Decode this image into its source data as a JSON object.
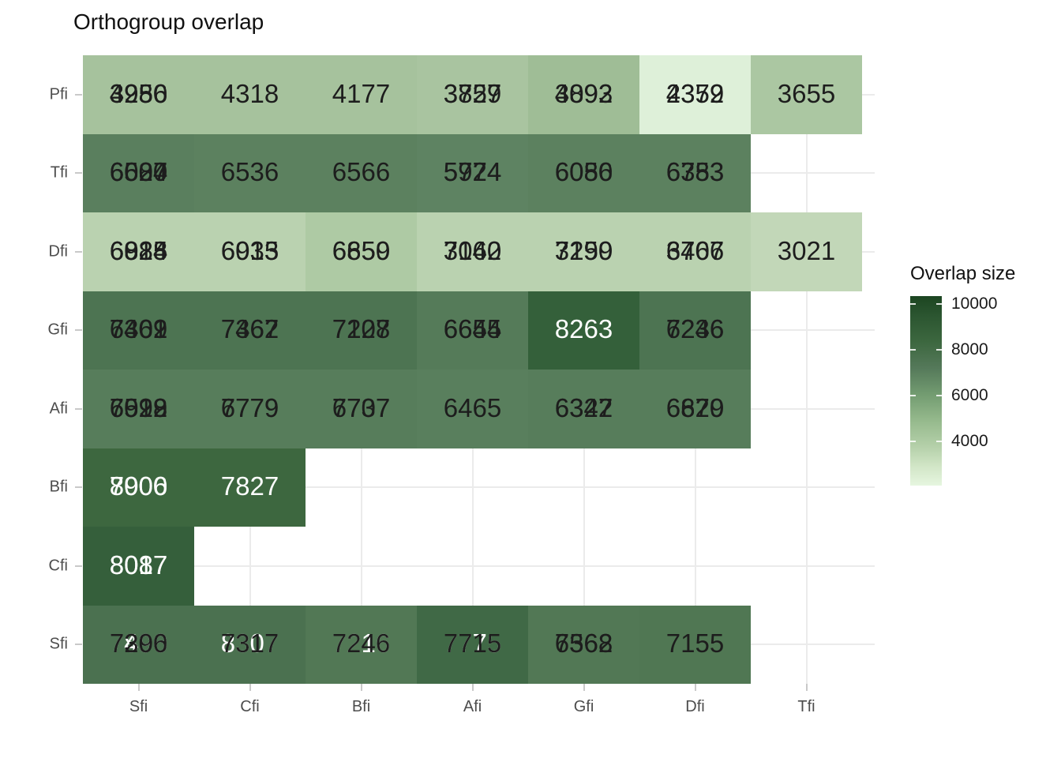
{
  "title": "Orthogroup overlap",
  "palette": {
    "label_dark": "#1d1d1d",
    "label_light": "#ffffff",
    "axis_text": "#4d4d4d",
    "gridline": "#ebebeb",
    "legend_dark_end": "#1c4521",
    "legend_light_end": "#e6f6df"
  },
  "chart_data": {
    "type": "heatmap",
    "title": "Orthogroup overlap",
    "x_categories": [
      "Sfi",
      "Cfi",
      "Bfi",
      "Afi",
      "Gfi",
      "Dfi",
      "Tfi"
    ],
    "y_categories": [
      "Pfi",
      "Tfi",
      "Dfi",
      "Gfi",
      "Afi",
      "Bfi",
      "Cfi",
      "Sfi"
    ],
    "legend": {
      "title": "Overlap size",
      "tick_values": [
        "10000",
        "8000",
        "6000",
        "4000"
      ],
      "domain": [
        2100,
        10350
      ]
    },
    "cells": [
      {
        "row": "Pfi",
        "col": "Sfi",
        "bg": "#a6c29d",
        "labels": [
          {
            "text": "4256",
            "tone": "dark"
          },
          {
            "text": "3950",
            "tone": "dark"
          },
          {
            "text": "3986",
            "tone": "dark"
          }
        ]
      },
      {
        "row": "Pfi",
        "col": "Cfi",
        "bg": "#a6c29d",
        "labels": [
          {
            "text": "4318",
            "tone": "dark"
          }
        ]
      },
      {
        "row": "Pfi",
        "col": "Bfi",
        "bg": "#a6c29d",
        "labels": [
          {
            "text": "4177",
            "tone": "dark"
          }
        ]
      },
      {
        "row": "Pfi",
        "col": "Afi",
        "bg": "#a9c4a0",
        "labels": [
          {
            "text": "3829",
            "tone": "dark"
          },
          {
            "text": "3757",
            "tone": "dark"
          }
        ]
      },
      {
        "row": "Pfi",
        "col": "Gfi",
        "bg": "#9fbd96",
        "labels": [
          {
            "text": "4092",
            "tone": "dark"
          },
          {
            "text": "3893",
            "tone": "dark"
          }
        ]
      },
      {
        "row": "Pfi",
        "col": "Dfi",
        "bg": "#def0d9",
        "labels": [
          {
            "text": "4352",
            "tone": "dark"
          },
          {
            "text": "2379",
            "tone": "dark"
          }
        ]
      },
      {
        "row": "Pfi",
        "col": "Tfi",
        "bg": "#abc7a2",
        "labels": [
          {
            "text": "3655",
            "tone": "dark"
          }
        ]
      },
      {
        "row": "Tfi",
        "col": "Sfi",
        "bg": "#5a7f5e",
        "labels": [
          {
            "text": "6504",
            "tone": "dark"
          },
          {
            "text": "6680",
            "tone": "dark"
          },
          {
            "text": "6027",
            "tone": "dark"
          }
        ]
      },
      {
        "row": "Tfi",
        "col": "Cfi",
        "bg": "#5c815f",
        "labels": [
          {
            "text": "6536",
            "tone": "dark"
          }
        ]
      },
      {
        "row": "Tfi",
        "col": "Bfi",
        "bg": "#5c815f",
        "labels": [
          {
            "text": "6566",
            "tone": "dark"
          }
        ]
      },
      {
        "row": "Tfi",
        "col": "Afi",
        "bg": "#5e8362",
        "labels": [
          {
            "text": "5924",
            "tone": "dark"
          },
          {
            "text": "5774",
            "tone": "dark"
          }
        ]
      },
      {
        "row": "Tfi",
        "col": "Gfi",
        "bg": "#5c815f",
        "labels": [
          {
            "text": "6056",
            "tone": "dark"
          },
          {
            "text": "6080",
            "tone": "dark"
          }
        ]
      },
      {
        "row": "Tfi",
        "col": "Dfi",
        "bg": "#5c815f",
        "labels": [
          {
            "text": "6353",
            "tone": "dark"
          },
          {
            "text": "6783",
            "tone": "dark"
          }
        ]
      },
      {
        "row": "Dfi",
        "col": "Sfi",
        "bg": "#bad2b0",
        "labels": [
          {
            "text": "6928",
            "tone": "dark"
          },
          {
            "text": "6815",
            "tone": "dark"
          },
          {
            "text": "6084",
            "tone": "dark"
          }
        ]
      },
      {
        "row": "Dfi",
        "col": "Cfi",
        "bg": "#bad2b0",
        "labels": [
          {
            "text": "6935",
            "tone": "dark"
          },
          {
            "text": "6013",
            "tone": "dark"
          }
        ]
      },
      {
        "row": "Dfi",
        "col": "Bfi",
        "bg": "#aecaa4",
        "labels": [
          {
            "text": "6659",
            "tone": "dark"
          },
          {
            "text": "6850",
            "tone": "dark"
          }
        ]
      },
      {
        "row": "Dfi",
        "col": "Afi",
        "bg": "#bad2b0",
        "labels": [
          {
            "text": "7060",
            "tone": "dark"
          },
          {
            "text": "3142",
            "tone": "dark"
          }
        ]
      },
      {
        "row": "Dfi",
        "col": "Gfi",
        "bg": "#bad2b0",
        "labels": [
          {
            "text": "7299",
            "tone": "dark"
          },
          {
            "text": "3150",
            "tone": "dark"
          }
        ]
      },
      {
        "row": "Dfi",
        "col": "Dfi",
        "bg": "#bad2b0",
        "labels": [
          {
            "text": "6466",
            "tone": "dark"
          },
          {
            "text": "3707",
            "tone": "dark"
          }
        ]
      },
      {
        "row": "Dfi",
        "col": "Tfi",
        "bg": "#c2d7b8",
        "labels": [
          {
            "text": "3021",
            "tone": "dark"
          }
        ]
      },
      {
        "row": "Gfi",
        "col": "Sfi",
        "bg": "#4d7452",
        "labels": [
          {
            "text": "7362",
            "tone": "dark"
          },
          {
            "text": "7401",
            "tone": "dark"
          },
          {
            "text": "6409",
            "tone": "dark"
          }
        ]
      },
      {
        "row": "Gfi",
        "col": "Cfi",
        "bg": "#4d7452",
        "labels": [
          {
            "text": "7362",
            "tone": "dark"
          },
          {
            "text": "7467",
            "tone": "dark"
          }
        ]
      },
      {
        "row": "Gfi",
        "col": "Bfi",
        "bg": "#4d7452",
        "labels": [
          {
            "text": "7208",
            "tone": "dark"
          },
          {
            "text": "7127",
            "tone": "dark"
          }
        ]
      },
      {
        "row": "Gfi",
        "col": "Afi",
        "bg": "#557b59",
        "labels": [
          {
            "text": "6655",
            "tone": "dark"
          },
          {
            "text": "6644",
            "tone": "dark"
          }
        ]
      },
      {
        "row": "Gfi",
        "col": "Gfi",
        "bg": "#34603a",
        "labels": [
          {
            "text": "8263",
            "tone": "light"
          }
        ]
      },
      {
        "row": "Gfi",
        "col": "Dfi",
        "bg": "#4d7452",
        "labels": [
          {
            "text": "7236",
            "tone": "dark"
          },
          {
            "text": "6246",
            "tone": "dark"
          }
        ]
      },
      {
        "row": "Afi",
        "col": "Sfi",
        "bg": "#577d5b",
        "labels": [
          {
            "text": "7099",
            "tone": "dark"
          },
          {
            "text": "6522",
            "tone": "dark"
          },
          {
            "text": "6918",
            "tone": "dark"
          }
        ]
      },
      {
        "row": "Afi",
        "col": "Cfi",
        "bg": "#577d5b",
        "labels": [
          {
            "text": "6779",
            "tone": "dark"
          },
          {
            "text": "7779",
            "tone": "dark"
          }
        ]
      },
      {
        "row": "Afi",
        "col": "Bfi",
        "bg": "#577d5b",
        "labels": [
          {
            "text": "6707",
            "tone": "dark"
          },
          {
            "text": "7737",
            "tone": "dark"
          }
        ]
      },
      {
        "row": "Afi",
        "col": "Afi",
        "bg": "#597f5d",
        "labels": [
          {
            "text": "6465",
            "tone": "dark"
          }
        ]
      },
      {
        "row": "Afi",
        "col": "Gfi",
        "bg": "#577d5b",
        "labels": [
          {
            "text": "6327",
            "tone": "dark"
          },
          {
            "text": "6342",
            "tone": "dark"
          }
        ]
      },
      {
        "row": "Afi",
        "col": "Dfi",
        "bg": "#577d5b",
        "labels": [
          {
            "text": "6629",
            "tone": "dark"
          },
          {
            "text": "6870",
            "tone": "dark"
          }
        ]
      },
      {
        "row": "Bfi",
        "col": "Sfi",
        "bg": "#3d673f",
        "labels": [
          {
            "text": "8000",
            "tone": "light"
          },
          {
            "text": "7906",
            "tone": "light"
          }
        ]
      },
      {
        "row": "Bfi",
        "col": "Cfi",
        "bg": "#3d673f",
        "labels": [
          {
            "text": "7827",
            "tone": "light"
          }
        ]
      },
      {
        "row": "Cfi",
        "col": "Sfi",
        "bg": "#355f3b",
        "labels": [
          {
            "text": "8087",
            "tone": "light"
          },
          {
            "text": "8017",
            "tone": "light"
          }
        ]
      },
      {
        "row": "Sfi",
        "col": "Sfi",
        "bg": "#4b7150",
        "labels": [
          {
            "text": "7490",
            "tone": "light"
          },
          {
            "text": "7896",
            "tone": "light"
          },
          {
            "text": "7290",
            "tone": "dark"
          },
          {
            "text": "7306",
            "tone": "dark"
          }
        ]
      },
      {
        "row": "Sfi",
        "col": "Cfi",
        "bg": "#4b7150",
        "labels": [
          {
            "text": "8307",
            "tone": "light"
          },
          {
            "text": "7317",
            "tone": "dark"
          }
        ]
      },
      {
        "row": "Sfi",
        "col": "Bfi",
        "bg": "#527855",
        "labels": [
          {
            "text": "7216",
            "tone": "light"
          },
          {
            "text": "7246",
            "tone": "dark"
          }
        ]
      },
      {
        "row": "Sfi",
        "col": "Afi",
        "bg": "#406946",
        "labels": [
          {
            "text": "7775",
            "tone": "light"
          },
          {
            "text": "7715",
            "tone": "dark"
          }
        ]
      },
      {
        "row": "Sfi",
        "col": "Gfi",
        "bg": "#527855",
        "labels": [
          {
            "text": "7368",
            "tone": "dark"
          },
          {
            "text": "6562",
            "tone": "dark"
          }
        ]
      },
      {
        "row": "Sfi",
        "col": "Dfi",
        "bg": "#507753",
        "labels": [
          {
            "text": "7155",
            "tone": "dark"
          }
        ]
      }
    ]
  }
}
